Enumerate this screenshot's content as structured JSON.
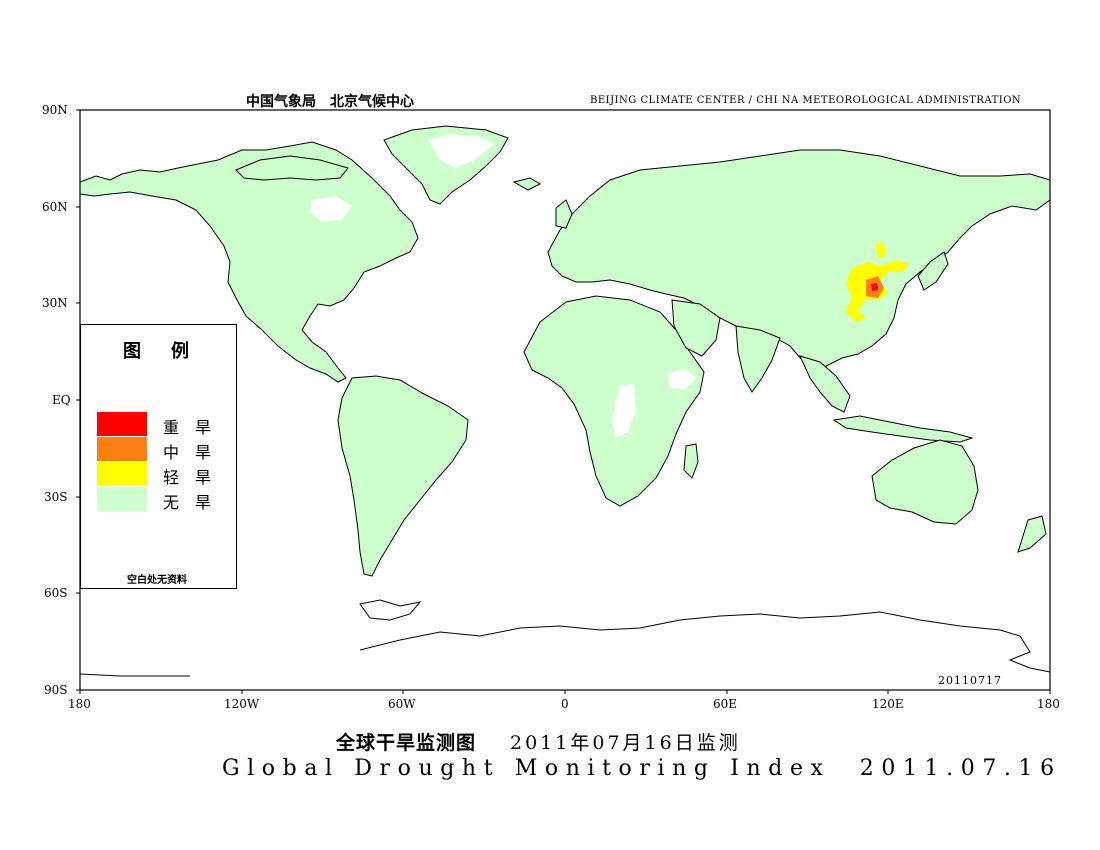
{
  "header": {
    "left_cn": "中国气象局　北京气候中心",
    "right_en": "BEIJING CLIMATE CENTER / CHI NA METEOROLOGICAL ADMINISTRATION"
  },
  "axes": {
    "lat_labels": [
      "90N",
      "60N",
      "30N",
      "EQ",
      "30S",
      "60S",
      "90S"
    ],
    "lon_labels": [
      "180",
      "120W",
      "60W",
      "0",
      "60E",
      "120E",
      "180"
    ]
  },
  "date_stamp": "20110717",
  "legend": {
    "title": "图例",
    "items": [
      {
        "label": "重旱",
        "color": "#ff0000"
      },
      {
        "label": "中旱",
        "color": "#ff8010"
      },
      {
        "label": "轻旱",
        "color": "#ffff00"
      },
      {
        "label": "无旱",
        "color": "#ccffcc"
      }
    ],
    "note": "空白处无资料"
  },
  "title": {
    "cn_left": "全球干旱监测图",
    "cn_right": "2011年07月16日监测",
    "en": "Global Drought Monitoring Index  2011.07.16"
  },
  "colors": {
    "no_drought": "#ccffcc",
    "light": "#ffff00",
    "moderate": "#ff8010",
    "severe": "#ff0000",
    "coast": "#000000"
  }
}
